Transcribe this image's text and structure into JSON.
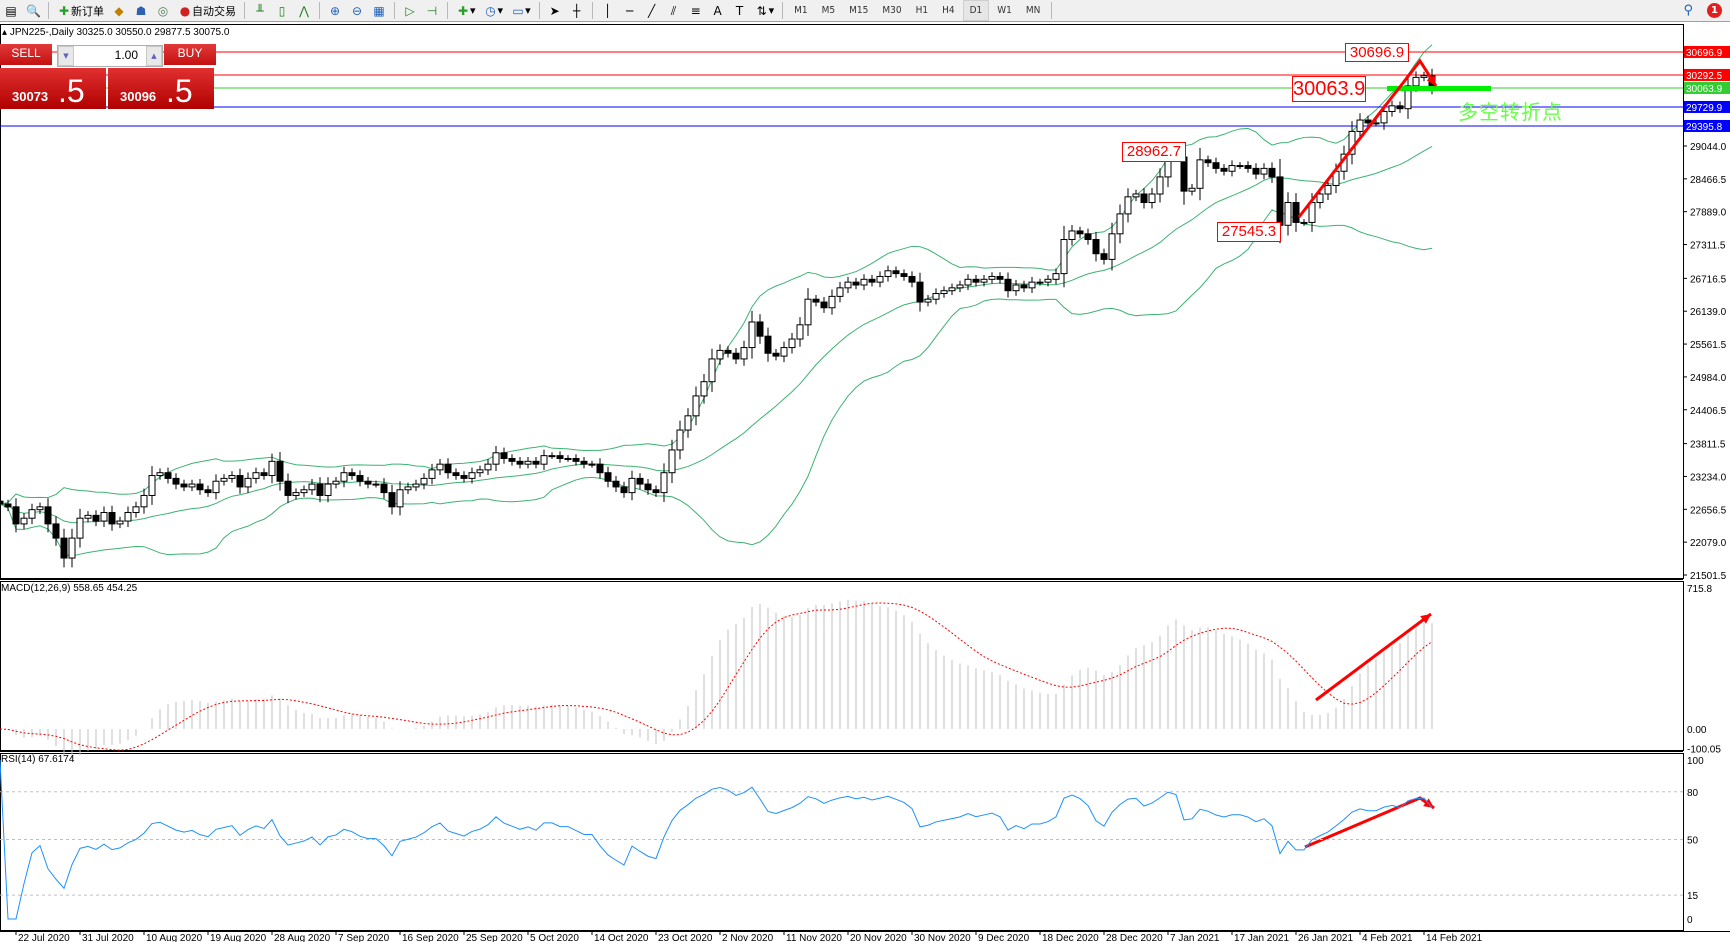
{
  "toolbar": {
    "new_order": "新订单",
    "auto_trading": "自动交易",
    "timeframes": [
      "M1",
      "M5",
      "M15",
      "M30",
      "H1",
      "H4",
      "D1",
      "W1",
      "MN"
    ],
    "active_timeframe": "D1",
    "notification_count": "1"
  },
  "chart_header": "JPN225-,Daily  30325.0 30550.0 29877.5 30075.0",
  "one_click": {
    "sell_label": "SELL",
    "buy_label": "BUY",
    "lot": "1.00",
    "sell_price_main": "30073",
    "sell_price_pip": ".5",
    "buy_price_main": "30096",
    "buy_price_pip": ".5"
  },
  "annotations": {
    "high_label": "30696.9",
    "pivot_label": "30063.9",
    "swing_high_label": "28962.7",
    "swing_low_label": "27545.3",
    "note": "多空转折点"
  },
  "indicators": {
    "macd_label": "MACD(12,26,9) 558.65 454.25",
    "rsi_label": "RSI(14) 67.6174"
  },
  "chart_data": {
    "type": "candlestick",
    "symbol": "JPN225-",
    "timeframe": "Daily",
    "ylim": [
      21501.5,
      30794.0
    ],
    "price_ticks": [
      "29044.0",
      "28466.5",
      "27889.0",
      "27311.5",
      "26716.5",
      "26139.0",
      "25561.5",
      "24984.0",
      "24406.5",
      "23811.5",
      "23234.0",
      "22656.5",
      "22079.0",
      "21501.5"
    ],
    "closes": [
      22750,
      22700,
      22400,
      22500,
      22650,
      22700,
      22400,
      22150,
      21800,
      22150,
      22500,
      22550,
      22450,
      22600,
      22400,
      22450,
      22600,
      22700,
      22900,
      23250,
      23300,
      23200,
      23100,
      23050,
      23100,
      23000,
      22950,
      23150,
      23200,
      23250,
      23050,
      23200,
      23300,
      23250,
      23500,
      23150,
      22900,
      22950,
      23000,
      23100,
      22900,
      23100,
      23150,
      23300,
      23250,
      23150,
      23100,
      23100,
      22950,
      22700,
      23000,
      23050,
      23100,
      23200,
      23350,
      23450,
      23300,
      23250,
      23200,
      23300,
      23350,
      23450,
      23650,
      23550,
      23500,
      23450,
      23500,
      23450,
      23600,
      23600,
      23550,
      23550,
      23500,
      23450,
      23450,
      23300,
      23150,
      23050,
      22950,
      23200,
      23100,
      23000,
      22950,
      23300,
      23700,
      24050,
      24300,
      24650,
      24900,
      25300,
      25450,
      25400,
      25300,
      25500,
      25950,
      25700,
      25400,
      25350,
      25500,
      25650,
      25900,
      26350,
      26300,
      26200,
      26400,
      26550,
      26650,
      26600,
      26700,
      26650,
      26750,
      26850,
      26800,
      26750,
      26650,
      26300,
      26350,
      26450,
      26500,
      26550,
      26600,
      26700,
      26650,
      26700,
      26750,
      26700,
      26500,
      26600,
      26550,
      26650,
      26650,
      26700,
      26800,
      27400,
      27550,
      27500,
      27400,
      27150,
      27050,
      27500,
      27850,
      28150,
      28200,
      28050,
      28200,
      28500,
      28900,
      28850,
      28250,
      28300,
      28800,
      28750,
      28650,
      28600,
      28700,
      28700,
      28650,
      28550,
      28650,
      28500,
      27650,
      28050,
      27700,
      27700,
      28050,
      28200,
      28350,
      28600,
      28900,
      29300,
      29500,
      29450,
      29450,
      29650,
      29750,
      29700,
      30100,
      30250,
      30280,
      30075
    ],
    "bollinger": {
      "period": 20,
      "deviation": 2,
      "color": "#3cb371"
    },
    "levels": [
      {
        "value": "30696.9",
        "color": "#ff0000"
      },
      {
        "value": "30292.5",
        "color": "#ff0000"
      },
      {
        "value": "30063.9",
        "color": "#33cc33"
      },
      {
        "value": "29729.9",
        "color": "#0000ff"
      },
      {
        "value": "29395.8",
        "color": "#0000ff"
      }
    ],
    "macd": {
      "fast": 12,
      "slow": 26,
      "signal": 9,
      "ticks": [
        "715.8",
        "0.00",
        "-100.05"
      ],
      "ylim": [
        -100.05,
        715.8
      ],
      "histogram_color": "#c0c0c0",
      "signal_color": "#ff0000"
    },
    "rsi": {
      "period": 14,
      "ticks": [
        "100",
        "80",
        "50",
        "15",
        "0"
      ],
      "levels": [
        80,
        50,
        15
      ],
      "ylim": [
        0,
        100
      ],
      "color": "#1e90ff"
    },
    "date_labels": [
      "22 Jul 2020",
      "31 Jul 2020",
      "10 Aug 2020",
      "19 Aug 2020",
      "28 Aug 2020",
      "7 Sep 2020",
      "16 Sep 2020",
      "25 Sep 2020",
      "5 Oct 2020",
      "14 Oct 2020",
      "23 Oct 2020",
      "2 Nov 2020",
      "11 Nov 2020",
      "20 Nov 2020",
      "30 Nov 2020",
      "9 Dec 2020",
      "18 Dec 2020",
      "28 Dec 2020",
      "7 Jan 2021",
      "17 Jan 2021",
      "26 Jan 2021",
      "4 Feb 2021",
      "14 Feb 2021"
    ]
  }
}
